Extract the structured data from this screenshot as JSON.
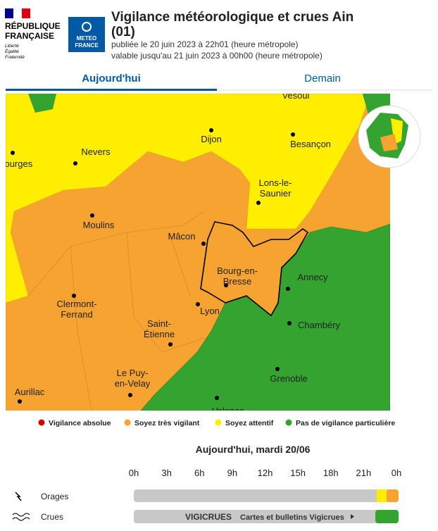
{
  "header": {
    "republic": [
      "RÉPUBLIQUE",
      "FRANÇAISE"
    ],
    "motto": [
      "Liberté",
      "Égalité",
      "Fraternité"
    ],
    "meteo": [
      "METEO",
      "FRANCE"
    ],
    "title": [
      "Vigilance météorologique et crues Ain",
      "(01)"
    ],
    "published": "publiée le 20 juin 2023 à 22h01 (heure métropole)",
    "valid": "valable jusqu'au 21 juin 2023 à 00h00 (heure métropole)"
  },
  "tabs": [
    "Aujourd'hui",
    "Demain"
  ],
  "map": {
    "cities": [
      [
        "Vesoul"
      ],
      [
        "Bourges"
      ],
      [
        "Nevers"
      ],
      [
        "Dijon"
      ],
      [
        "Besançon"
      ],
      [
        "Lons-le-",
        "Saunier"
      ],
      [
        "Moulins"
      ],
      [
        "Mâcon"
      ],
      [
        "Bourg-en-",
        "Bresse"
      ],
      [
        "Annecy"
      ],
      [
        "Lyon"
      ],
      [
        "Clermont-",
        "Ferrand"
      ],
      [
        "Chambéry"
      ],
      [
        "Saint-",
        "Étienne"
      ],
      [
        "Grenoble"
      ],
      [
        "Le Puy-",
        "en-Velay"
      ],
      [
        "Aurillac"
      ],
      [
        "Valence"
      ]
    ]
  },
  "legend": [
    {
      "label": "Vigilance absolue",
      "color": "#d40000"
    },
    {
      "label": "Soyez très vigilant",
      "color": "#f6a332"
    },
    {
      "label": "Soyez attentif",
      "color": "#ffee00"
    },
    {
      "label": "Pas de vigilance particulière",
      "color": "#35a32f"
    }
  ],
  "timeline": {
    "date": "Aujourd'hui, mardi 20/06",
    "hours": [
      "0h",
      "3h",
      "6h",
      "9h",
      "12h",
      "15h",
      "18h",
      "21h",
      "0h"
    ],
    "rows": [
      {
        "label": "Orages"
      },
      {
        "label": "Crues",
        "brand": "VIGICRUES",
        "link": "Cartes et bulletins Vigicrues"
      }
    ]
  }
}
